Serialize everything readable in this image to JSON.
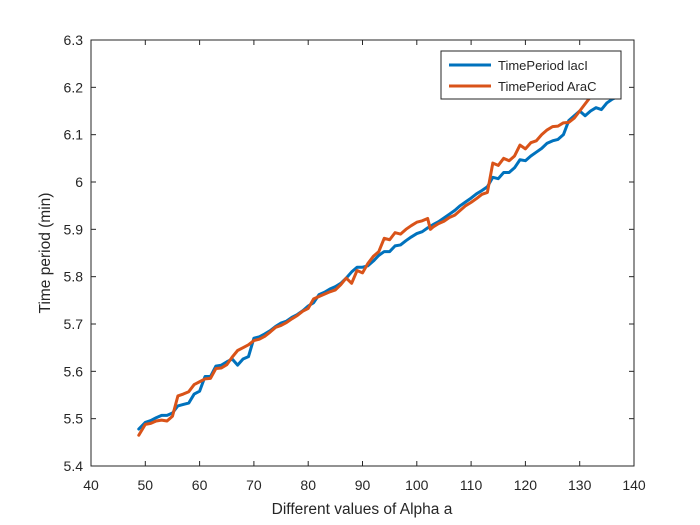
{
  "chart_data": {
    "type": "line",
    "title": "",
    "xlabel": "Different values of Alpha a",
    "ylabel": "Time period (min)",
    "xlim": [
      40,
      140
    ],
    "ylim": [
      5.4,
      6.3
    ],
    "xticks": [
      40,
      50,
      60,
      70,
      80,
      90,
      100,
      110,
      120,
      130,
      140
    ],
    "xtick_labels": [
      "40",
      "50",
      "60",
      "70",
      "80",
      "90",
      "100",
      "110",
      "120",
      "130",
      "140"
    ],
    "yticks": [
      5.4,
      5.5,
      5.6,
      5.7,
      5.8,
      5.9,
      6.0,
      6.1,
      6.2,
      6.3
    ],
    "ytick_labels": [
      "5.4",
      "5.5",
      "5.6",
      "5.7",
      "5.8",
      "5.9",
      "6",
      "6.1",
      "6.2",
      "6.3"
    ],
    "grid": false,
    "legend_position": "top-right",
    "series": [
      {
        "name": "TimePeriod lacI",
        "color": "#0072BD",
        "points": [
          [
            48.8,
            5.478
          ],
          [
            50,
            5.492
          ],
          [
            51,
            5.496
          ],
          [
            52,
            5.502
          ],
          [
            53,
            5.507
          ],
          [
            54,
            5.507
          ],
          [
            55,
            5.512
          ],
          [
            56,
            5.527
          ],
          [
            57,
            5.53
          ],
          [
            58,
            5.533
          ],
          [
            59,
            5.552
          ],
          [
            60,
            5.558
          ],
          [
            61,
            5.589
          ],
          [
            62,
            5.589
          ],
          [
            63,
            5.611
          ],
          [
            64,
            5.613
          ],
          [
            65,
            5.62
          ],
          [
            66,
            5.626
          ],
          [
            67,
            5.613
          ],
          [
            68,
            5.626
          ],
          [
            69,
            5.631
          ],
          [
            70,
            5.67
          ],
          [
            71,
            5.673
          ],
          [
            72,
            5.679
          ],
          [
            73,
            5.686
          ],
          [
            74,
            5.695
          ],
          [
            75,
            5.702
          ],
          [
            76,
            5.706
          ],
          [
            77,
            5.714
          ],
          [
            78,
            5.72
          ],
          [
            79,
            5.728
          ],
          [
            80,
            5.738
          ],
          [
            81,
            5.745
          ],
          [
            82,
            5.762
          ],
          [
            83,
            5.767
          ],
          [
            84,
            5.774
          ],
          [
            85,
            5.779
          ],
          [
            86,
            5.786
          ],
          [
            87,
            5.797
          ],
          [
            88,
            5.81
          ],
          [
            89,
            5.82
          ],
          [
            90,
            5.82
          ],
          [
            91,
            5.823
          ],
          [
            92,
            5.833
          ],
          [
            93,
            5.845
          ],
          [
            94,
            5.853
          ],
          [
            95,
            5.853
          ],
          [
            96,
            5.865
          ],
          [
            97,
            5.867
          ],
          [
            98,
            5.876
          ],
          [
            99,
            5.884
          ],
          [
            100,
            5.891
          ],
          [
            101,
            5.895
          ],
          [
            102,
            5.903
          ],
          [
            103,
            5.91
          ],
          [
            104,
            5.916
          ],
          [
            105,
            5.924
          ],
          [
            106,
            5.932
          ],
          [
            107,
            5.94
          ],
          [
            108,
            5.95
          ],
          [
            109,
            5.958
          ],
          [
            110,
            5.966
          ],
          [
            111,
            5.975
          ],
          [
            112,
            5.982
          ],
          [
            113,
            5.99
          ],
          [
            114,
            6.01
          ],
          [
            115,
            6.007
          ],
          [
            116,
            6.02
          ],
          [
            117,
            6.02
          ],
          [
            118,
            6.03
          ],
          [
            119,
            6.047
          ],
          [
            120,
            6.045
          ],
          [
            121,
            6.055
          ],
          [
            122,
            6.063
          ],
          [
            123,
            6.071
          ],
          [
            124,
            6.082
          ],
          [
            125,
            6.087
          ],
          [
            126,
            6.09
          ],
          [
            127,
            6.1
          ],
          [
            128,
            6.13
          ],
          [
            129,
            6.14
          ],
          [
            130,
            6.15
          ],
          [
            131,
            6.14
          ],
          [
            132,
            6.15
          ],
          [
            133,
            6.157
          ],
          [
            134,
            6.153
          ],
          [
            135,
            6.167
          ],
          [
            136,
            6.175
          ],
          [
            137,
            6.18
          ]
        ]
      },
      {
        "name": "TimePeriod AraC",
        "color": "#D95319",
        "points": [
          [
            48.8,
            5.465
          ],
          [
            50,
            5.488
          ],
          [
            51,
            5.49
          ],
          [
            52,
            5.495
          ],
          [
            53,
            5.497
          ],
          [
            54,
            5.495
          ],
          [
            55,
            5.505
          ],
          [
            56,
            5.548
          ],
          [
            57,
            5.552
          ],
          [
            58,
            5.557
          ],
          [
            59,
            5.572
          ],
          [
            60,
            5.578
          ],
          [
            61,
            5.584
          ],
          [
            62,
            5.585
          ],
          [
            63,
            5.606
          ],
          [
            64,
            5.607
          ],
          [
            65,
            5.614
          ],
          [
            66,
            5.63
          ],
          [
            67,
            5.644
          ],
          [
            68,
            5.65
          ],
          [
            69,
            5.656
          ],
          [
            70,
            5.665
          ],
          [
            71,
            5.668
          ],
          [
            72,
            5.674
          ],
          [
            73,
            5.683
          ],
          [
            74,
            5.693
          ],
          [
            75,
            5.697
          ],
          [
            76,
            5.703
          ],
          [
            77,
            5.711
          ],
          [
            78,
            5.718
          ],
          [
            79,
            5.727
          ],
          [
            80,
            5.733
          ],
          [
            81,
            5.753
          ],
          [
            82,
            5.758
          ],
          [
            83,
            5.763
          ],
          [
            84,
            5.768
          ],
          [
            85,
            5.772
          ],
          [
            86,
            5.783
          ],
          [
            87,
            5.797
          ],
          [
            88,
            5.786
          ],
          [
            89,
            5.813
          ],
          [
            90,
            5.808
          ],
          [
            91,
            5.828
          ],
          [
            92,
            5.843
          ],
          [
            93,
            5.853
          ],
          [
            94,
            5.881
          ],
          [
            95,
            5.878
          ],
          [
            96,
            5.893
          ],
          [
            97,
            5.89
          ],
          [
            98,
            5.9
          ],
          [
            99,
            5.908
          ],
          [
            100,
            5.915
          ],
          [
            101,
            5.918
          ],
          [
            102,
            5.923
          ],
          [
            102.5,
            5.9
          ],
          [
            103,
            5.905
          ],
          [
            104,
            5.912
          ],
          [
            105,
            5.917
          ],
          [
            106,
            5.925
          ],
          [
            107,
            5.93
          ],
          [
            108,
            5.94
          ],
          [
            109,
            5.95
          ],
          [
            110,
            5.957
          ],
          [
            111,
            5.965
          ],
          [
            112,
            5.974
          ],
          [
            113,
            5.978
          ],
          [
            114,
            6.04
          ],
          [
            115,
            6.035
          ],
          [
            116,
            6.05
          ],
          [
            117,
            6.045
          ],
          [
            118,
            6.055
          ],
          [
            119,
            6.078
          ],
          [
            120,
            6.07
          ],
          [
            121,
            6.083
          ],
          [
            122,
            6.087
          ],
          [
            123,
            6.1
          ],
          [
            124,
            6.11
          ],
          [
            125,
            6.117
          ],
          [
            126,
            6.118
          ],
          [
            127,
            6.125
          ],
          [
            128,
            6.126
          ],
          [
            129,
            6.135
          ],
          [
            130,
            6.15
          ],
          [
            131,
            6.165
          ],
          [
            132,
            6.18
          ],
          [
            133,
            6.195
          ],
          [
            134,
            6.2
          ],
          [
            135,
            6.195
          ],
          [
            136,
            6.2
          ],
          [
            137,
            6.215
          ]
        ]
      }
    ]
  }
}
